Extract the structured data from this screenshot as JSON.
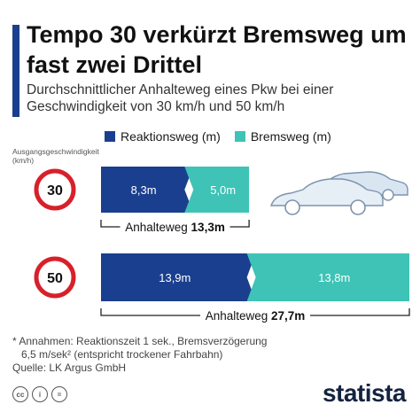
{
  "title": "Tempo 30 verkürzt Bremsweg um fast zwei Drittel",
  "subtitle": "Durchschnittlicher Anhalteweg eines Pkw bei einer Geschwindigkeit von 30 km/h und 50 km/h",
  "colors": {
    "reaktion": "#1b3f8f",
    "brems": "#3ec3b6",
    "accent": "#1b3f8f",
    "sign_ring": "#d8202a"
  },
  "chart_data": {
    "type": "bar",
    "stacked": true,
    "orientation": "horizontal",
    "y_axis_label": "Ausgangsgeschwindigkeit (km/h)",
    "categories": [
      "30",
      "50"
    ],
    "series": [
      {
        "name": "Reaktionsweg (m)",
        "values": [
          8.3,
          13.9
        ],
        "labels": [
          "8,3m",
          "13,9m"
        ]
      },
      {
        "name": "Bremsweg (m)",
        "values": [
          5.0,
          13.8
        ],
        "labels": [
          "5,0m",
          "13,8m"
        ]
      }
    ],
    "totals": [
      {
        "label": "Anhalteweg",
        "value_label": "13,3m",
        "value": 13.3
      },
      {
        "label": "Anhalteweg",
        "value_label": "27,7m",
        "value": 27.7
      }
    ],
    "xlim": [
      0,
      27.7
    ],
    "legend_position": "top"
  },
  "footnote": {
    "line1": "* Annahmen: Reaktionszeit 1 sek., Bremsverzögerung",
    "line2": "6,5 m/sek² (entspricht trockener Fahrbahn)",
    "source": "Quelle: LK Argus GmbH"
  },
  "license_icons": [
    "cc",
    "i",
    "="
  ],
  "brand": "statista"
}
